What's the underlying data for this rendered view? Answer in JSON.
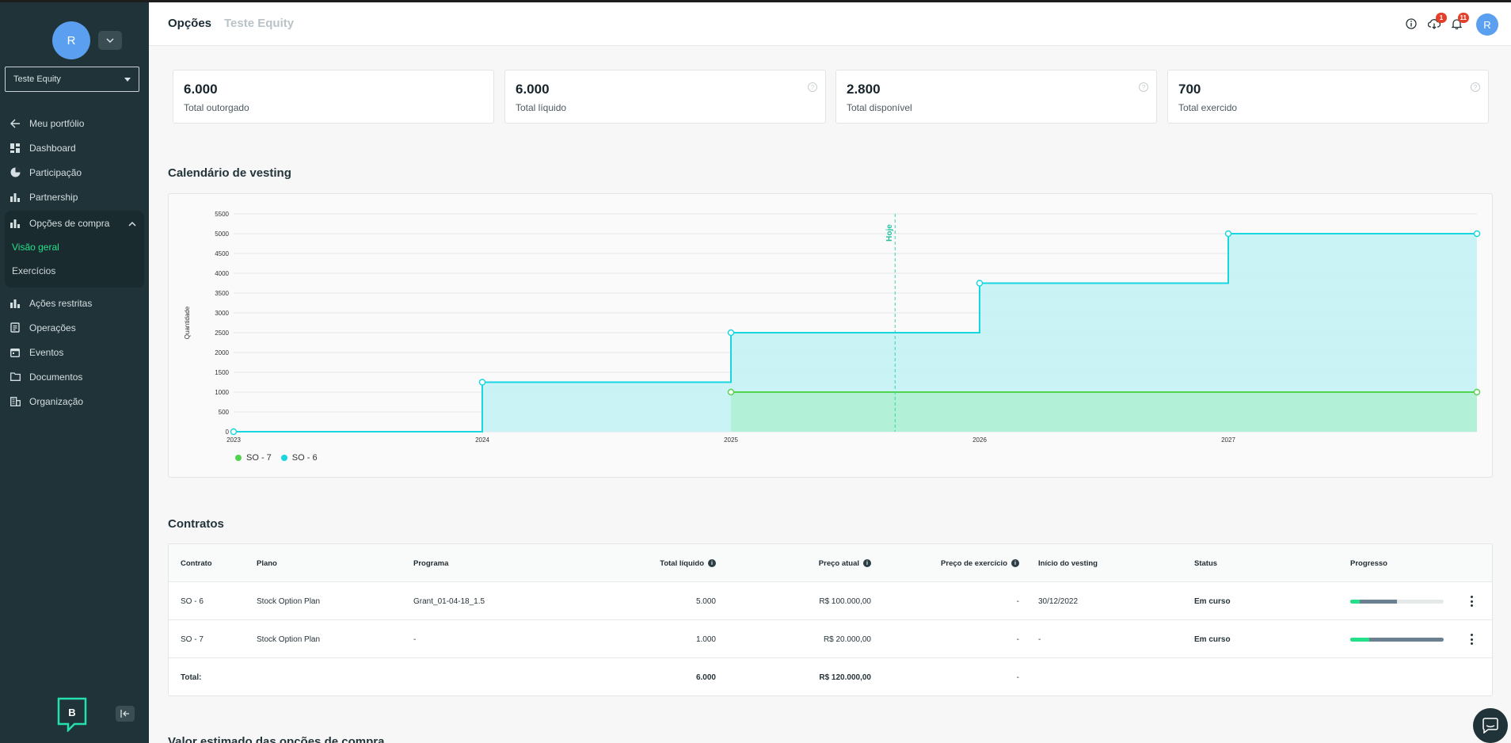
{
  "sidebar": {
    "avatar_initial": "R",
    "company": "Teste Equity",
    "nav": {
      "portfolio": "Meu portfólio",
      "dashboard": "Dashboard",
      "participacao": "Participação",
      "partnership": "Partnership",
      "opcoes": "Opções de compra",
      "visao_geral": "Visão geral",
      "exercicios": "Exercícios",
      "acoes_restritas": "Ações restritas",
      "operacoes": "Operações",
      "eventos": "Eventos",
      "documentos": "Documentos",
      "organizacao": "Organização"
    },
    "logo_letter": "B"
  },
  "header": {
    "title": "Opções",
    "company": "Teste Equity",
    "download_badge": "1",
    "notif_badge": "11",
    "avatar_initial": "R"
  },
  "cards": [
    {
      "value": "6.000",
      "label": "Total outorgado"
    },
    {
      "value": "6.000",
      "label": "Total líquido"
    },
    {
      "value": "2.800",
      "label": "Total disponível"
    },
    {
      "value": "700",
      "label": "Total exercido"
    }
  ],
  "vesting": {
    "title": "Calendário de vesting"
  },
  "chart_data": {
    "type": "area",
    "step": true,
    "ylabel": "Quantidade",
    "xlabel": "",
    "ylim": [
      0,
      5500
    ],
    "yticks": [
      "0",
      "500",
      "1000",
      "1500",
      "2000",
      "2500",
      "3000",
      "3500",
      "4000",
      "4500",
      "5000",
      "5500"
    ],
    "xticks": [
      "2023",
      "2024",
      "2025",
      "2026",
      "2027"
    ],
    "xlim": [
      2023,
      2028
    ],
    "today_label": "Hoje",
    "today_x": 2025.66,
    "series": [
      {
        "name": "SO - 7",
        "color": "#52d34f",
        "fill": "#b2efd6",
        "points": [
          [
            2025,
            1000
          ],
          [
            2028,
            1000
          ]
        ]
      },
      {
        "name": "SO - 6",
        "color": "#17d6e0",
        "fill": "#c6f2f4",
        "points": [
          [
            2023,
            0
          ],
          [
            2024,
            1250
          ],
          [
            2025,
            2500
          ],
          [
            2026,
            3750
          ],
          [
            2027,
            5000
          ],
          [
            2028,
            5000
          ]
        ]
      }
    ],
    "grid": true,
    "legend": "bottom-left"
  },
  "contracts": {
    "title": "Contratos",
    "headers": {
      "contrato": "Contrato",
      "plano": "Plano",
      "programa": "Programa",
      "total_liquido": "Total líquido",
      "preco_atual": "Preço atual",
      "preco_exercicio": "Preço de exercício",
      "inicio_vesting": "Início do vesting",
      "status": "Status",
      "progresso": "Progresso"
    },
    "rows": [
      {
        "contrato": "SO - 6",
        "plano": "Stock Option Plan",
        "programa": "Grant_01-04-18_1.5",
        "total_liquido": "5.000",
        "preco_atual": "R$ 100.000,00",
        "preco_exercicio": "-",
        "inicio_vesting": "30/12/2022",
        "status": "Em curso",
        "exercised": 0.1,
        "vested": 0.5
      },
      {
        "contrato": "SO - 7",
        "plano": "Stock Option Plan",
        "programa": "-",
        "total_liquido": "1.000",
        "preco_atual": "R$ 20.000,00",
        "preco_exercicio": "-",
        "inicio_vesting": "-",
        "status": "Em curso",
        "exercised": 0.2,
        "vested": 1.0
      }
    ],
    "total": {
      "label": "Total:",
      "total_liquido": "6.000",
      "preco_atual": "R$ 120.000,00",
      "preco_exercicio": "-"
    }
  },
  "valuation": {
    "title": "Valor estimado das opções de compra"
  }
}
